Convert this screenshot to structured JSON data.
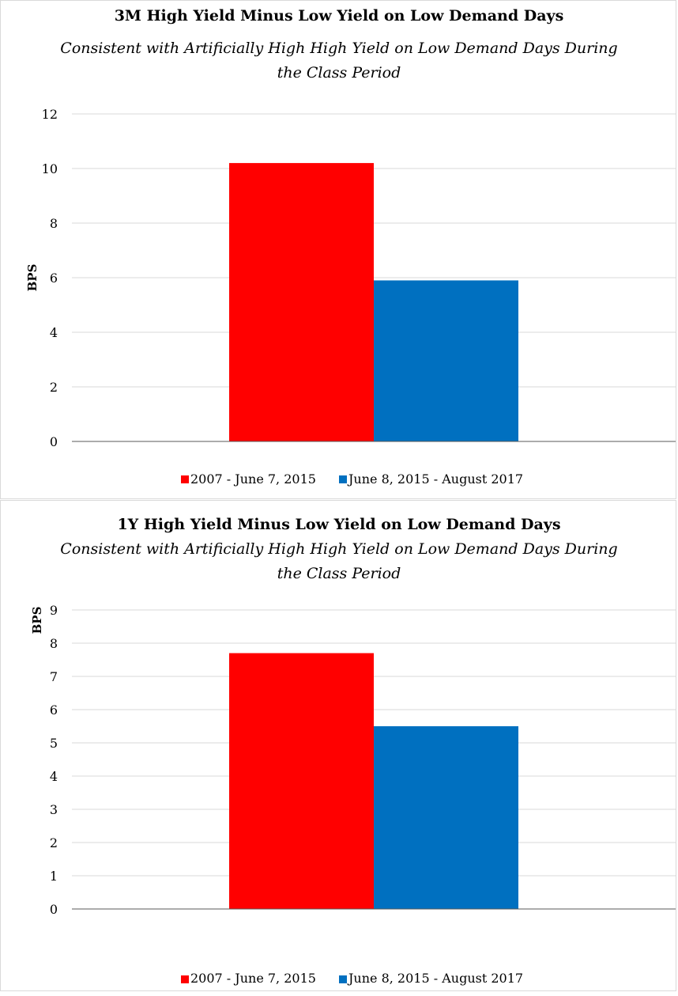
{
  "chart_data": [
    {
      "type": "bar",
      "title": "3M High Yield Minus Low Yield on Low Demand Days",
      "subtitle_line1": "Consistent with Artificially High High Yield on Low Demand Days During",
      "subtitle_line2": "the Class Period",
      "ylabel": "BPS",
      "ylim": [
        0,
        12
      ],
      "yticks": [
        "0",
        "2",
        "4",
        "6",
        "8",
        "10",
        "12"
      ],
      "ytick_values": [
        0,
        2,
        4,
        6,
        8,
        10,
        12
      ],
      "series": [
        {
          "name": "2007 - June 7, 2015",
          "value": 10.2,
          "color": "#ff0000"
        },
        {
          "name": "June 8, 2015 - August 2017",
          "value": 5.9,
          "color": "#0070c0"
        }
      ],
      "grid": true,
      "legend_position": "bottom"
    },
    {
      "type": "bar",
      "title": "1Y High Yield Minus Low Yield on Low Demand Days",
      "subtitle_line1": "Consistent with Artificially High High Yield on Low Demand Days During",
      "subtitle_line2": "the Class Period",
      "ylabel": "BPS",
      "ylim": [
        0,
        9
      ],
      "yticks": [
        "0",
        "1",
        "2",
        "3",
        "4",
        "5",
        "6",
        "7",
        "8",
        "9"
      ],
      "ytick_values": [
        0,
        1,
        2,
        3,
        4,
        5,
        6,
        7,
        8,
        9
      ],
      "series": [
        {
          "name": "2007 - June 7, 2015",
          "value": 7.7,
          "color": "#ff0000"
        },
        {
          "name": "June 8, 2015 - August 2017",
          "value": 5.5,
          "color": "#0070c0"
        }
      ],
      "grid": true,
      "legend_position": "bottom"
    }
  ]
}
